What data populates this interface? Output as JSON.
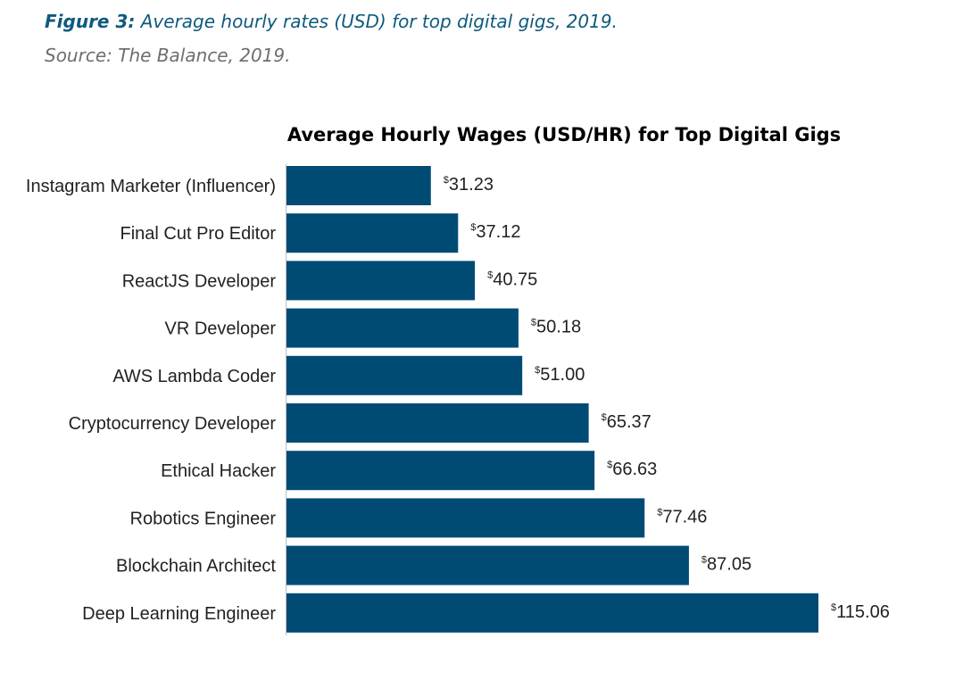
{
  "caption": {
    "figure_label": "Figure 3:",
    "figure_text": " Average hourly rates (USD) for top digital gigs, 2019.",
    "source": "Source: The Balance, 2019."
  },
  "colors": {
    "bar": "#004b74",
    "caption_blue": "#0e5a7d",
    "source_gray": "#6d6e71"
  },
  "chart_data": {
    "type": "bar",
    "orientation": "horizontal",
    "title": "Average Hourly Wages (USD/HR) for Top Digital Gigs",
    "xlabel": "",
    "ylabel": "",
    "currency_symbol": "$",
    "categories": [
      "Instagram Marketer (Influencer)",
      "Final Cut Pro Editor",
      "ReactJS Developer",
      "VR Developer",
      "AWS Lambda Coder",
      "Cryptocurrency Developer",
      "Ethical Hacker",
      "Robotics Engineer",
      "Blockchain Architect",
      "Deep Learning Engineer"
    ],
    "values": [
      31.23,
      37.12,
      40.75,
      50.18,
      51.0,
      65.37,
      66.63,
      77.46,
      87.05,
      115.06
    ],
    "value_labels": [
      "31.23",
      "37.12",
      "40.75",
      "50.18",
      "51.00",
      "65.37",
      "66.63",
      "77.46",
      "87.05",
      "115.06"
    ],
    "xlim": [
      0,
      115.06
    ],
    "grid": false,
    "legend": "none"
  }
}
